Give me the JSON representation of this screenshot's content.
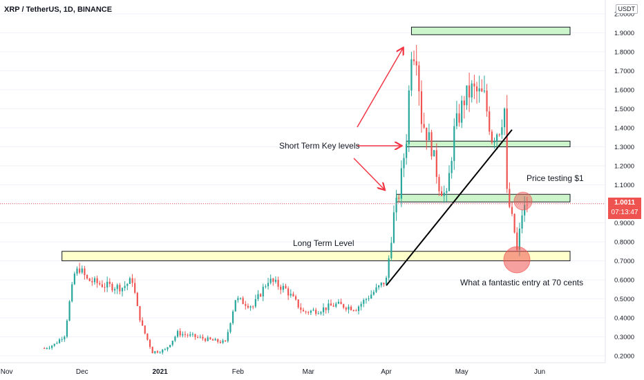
{
  "header": {
    "title": "XRP / TetherUS, 1D, BINANCE",
    "currency": "USDT"
  },
  "price": {
    "current": "1.0011",
    "countdown": "07:13:47"
  },
  "annotations": {
    "short_term": "Short Term Key levels",
    "long_term": "Long Term Level",
    "price_testing": "Price testing $1",
    "entry": "What a fantastic entry at 70 cents"
  },
  "colors": {
    "up": "#26a69a",
    "down": "#ef5350",
    "zone_green": "#ccf5cc",
    "zone_yellow": "#ffffcc",
    "arrow": "#f23645",
    "trendline": "#000000"
  },
  "chart_data": {
    "type": "candlestick",
    "title": "XRP / TetherUS, 1D, BINANCE",
    "x_ticks": [
      "Nov",
      "Dec",
      "2021",
      "Feb",
      "Mar",
      "Apr",
      "May",
      "Jun"
    ],
    "y_ticks": [
      0.2,
      0.3,
      0.4,
      0.5,
      0.6,
      0.7,
      0.8,
      0.9,
      1.0,
      1.1,
      1.2,
      1.3,
      1.4,
      1.5,
      1.6,
      1.7,
      1.8,
      1.9,
      2.0
    ],
    "ylim": [
      0.16,
      2.01
    ],
    "current_price": 1.0011,
    "close_path": [
      {
        "date": "2020-11-16",
        "close": 0.24
      },
      {
        "date": "2020-11-20",
        "close": 0.26
      },
      {
        "date": "2020-11-24",
        "close": 0.31
      },
      {
        "date": "2020-11-26",
        "close": 0.48
      },
      {
        "date": "2020-11-28",
        "close": 0.63
      },
      {
        "date": "2020-11-30",
        "close": 0.66
      },
      {
        "date": "2020-12-03",
        "close": 0.6
      },
      {
        "date": "2020-12-10",
        "close": 0.57
      },
      {
        "date": "2020-12-17",
        "close": 0.56
      },
      {
        "date": "2020-12-21",
        "close": 0.6
      },
      {
        "date": "2020-12-23",
        "close": 0.45
      },
      {
        "date": "2020-12-25",
        "close": 0.35
      },
      {
        "date": "2020-12-29",
        "close": 0.22
      },
      {
        "date": "2021-01-03",
        "close": 0.23
      },
      {
        "date": "2021-01-08",
        "close": 0.32
      },
      {
        "date": "2021-01-15",
        "close": 0.3
      },
      {
        "date": "2021-01-22",
        "close": 0.28
      },
      {
        "date": "2021-01-27",
        "close": 0.27
      },
      {
        "date": "2021-01-31",
        "close": 0.5
      },
      {
        "date": "2021-02-07",
        "close": 0.46
      },
      {
        "date": "2021-02-13",
        "close": 0.6
      },
      {
        "date": "2021-02-20",
        "close": 0.55
      },
      {
        "date": "2021-02-27",
        "close": 0.43
      },
      {
        "date": "2021-03-05",
        "close": 0.44
      },
      {
        "date": "2021-03-12",
        "close": 0.47
      },
      {
        "date": "2021-03-20",
        "close": 0.45
      },
      {
        "date": "2021-03-24",
        "close": 0.5
      },
      {
        "date": "2021-03-29",
        "close": 0.56
      },
      {
        "date": "2021-04-01",
        "close": 0.6
      },
      {
        "date": "2021-04-04",
        "close": 0.94
      },
      {
        "date": "2021-04-06",
        "close": 1.05
      },
      {
        "date": "2021-04-09",
        "close": 1.35
      },
      {
        "date": "2021-04-11",
        "close": 1.82
      },
      {
        "date": "2021-04-13",
        "close": 1.8
      },
      {
        "date": "2021-04-15",
        "close": 1.45
      },
      {
        "date": "2021-04-19",
        "close": 1.3
      },
      {
        "date": "2021-04-22",
        "close": 1.1
      },
      {
        "date": "2021-04-25",
        "close": 1.03
      },
      {
        "date": "2021-04-28",
        "close": 1.38
      },
      {
        "date": "2021-05-02",
        "close": 1.55
      },
      {
        "date": "2021-05-05",
        "close": 1.6
      },
      {
        "date": "2021-05-10",
        "close": 1.56
      },
      {
        "date": "2021-05-13",
        "close": 1.35
      },
      {
        "date": "2021-05-16",
        "close": 1.4
      },
      {
        "date": "2021-05-18",
        "close": 1.5
      },
      {
        "date": "2021-05-19",
        "close": 1.05
      },
      {
        "date": "2021-05-22",
        "close": 0.85
      },
      {
        "date": "2021-05-23",
        "close": 0.75
      },
      {
        "date": "2021-05-25",
        "close": 0.95
      },
      {
        "date": "2021-05-27",
        "close": 1.0
      }
    ],
    "zones": [
      {
        "label": "",
        "low": 1.89,
        "high": 1.93,
        "from": "2021-04-11",
        "to": "2021-06-15",
        "color": "#ccf5cc"
      },
      {
        "label": "",
        "low": 1.3,
        "high": 1.33,
        "from": "2021-04-09",
        "to": "2021-06-15",
        "color": "#ccf5cc"
      },
      {
        "label": "",
        "low": 1.01,
        "high": 1.05,
        "from": "2021-04-05",
        "to": "2021-06-15",
        "color": "#ccf5cc"
      },
      {
        "label": "Long Term Level",
        "low": 0.7,
        "high": 0.75,
        "from": "2020-11-23",
        "to": "2021-06-15",
        "color": "#ffffcc"
      }
    ],
    "trendline": [
      {
        "date": "2021-04-01",
        "value": 0.57
      },
      {
        "date": "2021-05-21",
        "value": 1.39
      }
    ]
  }
}
